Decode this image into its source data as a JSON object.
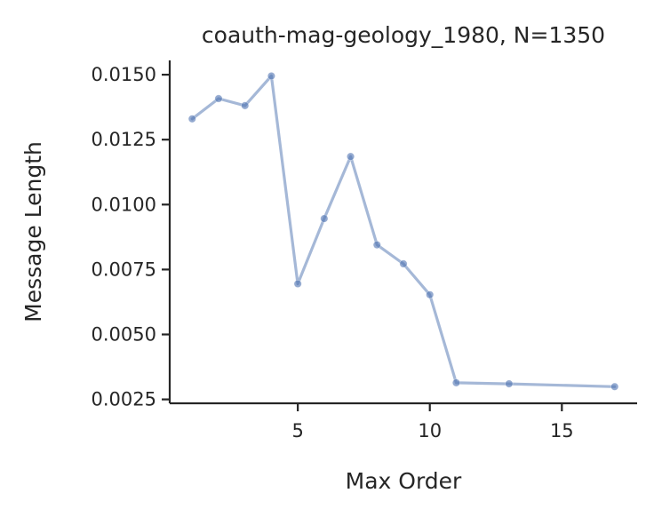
{
  "chart_data": {
    "type": "line",
    "title": "coauth-mag-geology_1980, N=1350",
    "xlabel": "Max Order",
    "ylabel": "Message Length",
    "xlim": [
      0.15,
      17.85
    ],
    "ylim": [
      0.00235,
      0.01555
    ],
    "xticks": [
      5,
      10,
      15
    ],
    "xtick_labels": [
      "5",
      "10",
      "15"
    ],
    "yticks": [
      0.0025,
      0.005,
      0.0075,
      0.01,
      0.0125,
      0.015
    ],
    "ytick_labels": [
      "0.0025",
      "0.0050",
      "0.0075",
      "0.0100",
      "0.0125",
      "0.0150"
    ],
    "grid": false,
    "legend": "none",
    "series": [
      {
        "color": "#4c72b0",
        "x": [
          1,
          2,
          3,
          4,
          5,
          6,
          7,
          8,
          9,
          10,
          11,
          13,
          17
        ],
        "y": [
          0.0133,
          0.01408,
          0.01381,
          0.01495,
          0.00695,
          0.00946,
          0.01185,
          0.00845,
          0.00772,
          0.00653,
          0.00314,
          0.0031,
          0.00299
        ]
      }
    ]
  }
}
